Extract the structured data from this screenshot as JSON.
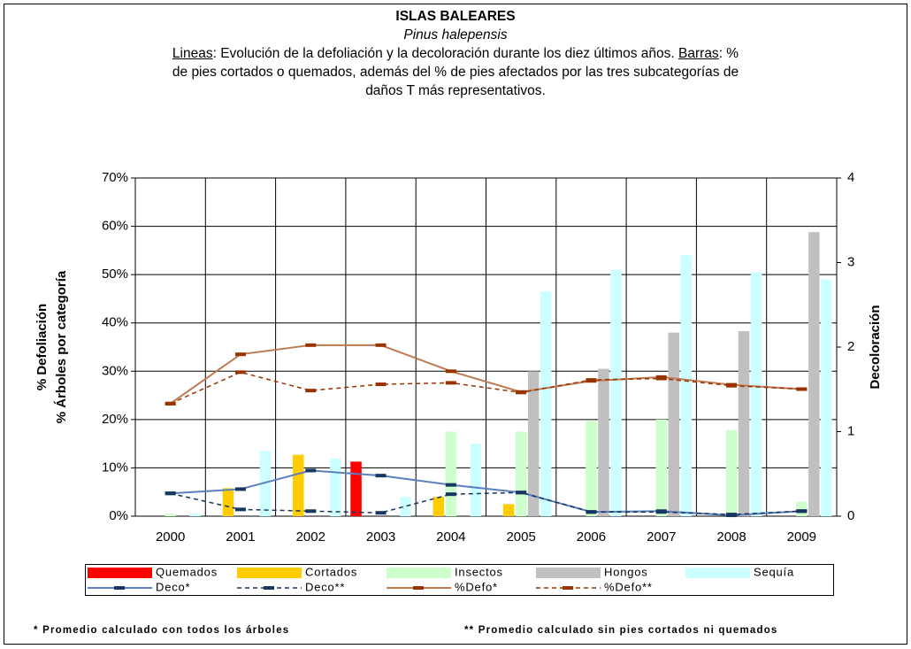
{
  "chart_data": {
    "type": "bar",
    "title": "ISLAS BALEARES",
    "subtitle": "Pinus halepensis",
    "description": [
      {
        "text": "Lineas",
        "underline": true
      },
      {
        "text": ": Evolución de la defoliación y la decoloración durante los diez últimos años. ",
        "underline": false
      },
      {
        "text": "Barras",
        "underline": true
      },
      {
        "text": ": % de pies cortados o quemados, además del % de pies afectados por las tres subcategorías de daños T más representativos.",
        "underline": false
      }
    ],
    "ylabel": [
      "% Defoliación",
      "% Árboles por categoría"
    ],
    "y2label": "Decoloración",
    "categories": [
      "2000",
      "2001",
      "2002",
      "2003",
      "2004",
      "2005",
      "2006",
      "2007",
      "2008",
      "2009"
    ],
    "ylim": [
      0,
      70
    ],
    "yticks": [
      {
        "value": 0,
        "label": "0%"
      },
      {
        "value": 10,
        "label": "10%"
      },
      {
        "value": 20,
        "label": "20%"
      },
      {
        "value": 30,
        "label": "30%"
      },
      {
        "value": 40,
        "label": "40%"
      },
      {
        "value": 50,
        "label": "50%"
      },
      {
        "value": 60,
        "label": "60%"
      },
      {
        "value": 70,
        "label": "70%"
      }
    ],
    "y2lim": [
      0,
      4
    ],
    "y2ticks": [
      0,
      1,
      2,
      3,
      4
    ],
    "grid": true,
    "series": [
      {
        "name": "Quemados",
        "type": "bar",
        "color": "#ff0000",
        "values": [
          0,
          0,
          0,
          11.3,
          0,
          0,
          0,
          0,
          0,
          0
        ]
      },
      {
        "name": "Cortados",
        "type": "bar",
        "color": "#ffcc00",
        "values": [
          0,
          5.8,
          12.7,
          0,
          4,
          2.5,
          0,
          0,
          0,
          0
        ]
      },
      {
        "name": "Insectos",
        "type": "bar",
        "color": "#ccffcc",
        "values": [
          0.5,
          0,
          0,
          0,
          17.5,
          17.5,
          19.7,
          20,
          17.8,
          3
        ]
      },
      {
        "name": "Hongos",
        "type": "bar",
        "color": "#c0c0c0",
        "values": [
          0,
          0,
          0,
          0,
          0,
          30,
          30.5,
          38,
          38.3,
          58.8
        ]
      },
      {
        "name": "Sequía",
        "type": "bar",
        "color": "#ccffff",
        "values": [
          0.5,
          13.5,
          12,
          4,
          15,
          46.5,
          51,
          54,
          50.5,
          49
        ]
      },
      {
        "name": "Deco*",
        "type": "line",
        "axis": "y2",
        "color": "#5b7fbf",
        "marker_color": "#17375e",
        "dashed": false,
        "values": [
          0.27,
          0.32,
          0.54,
          0.48,
          0.37,
          0.28,
          0.05,
          0.06,
          0.01,
          0.06
        ]
      },
      {
        "name": "Deco**",
        "type": "line",
        "axis": "y2",
        "color": "#17375e",
        "marker_color": "#17375e",
        "dashed": true,
        "values": [
          0.27,
          0.08,
          0.06,
          0.04,
          0.26,
          0.28,
          0.05,
          0.05,
          0.02,
          0.06
        ]
      },
      {
        "name": "%Defo*",
        "type": "line",
        "color": "#c07850",
        "marker_color": "#993300",
        "dashed": false,
        "values": [
          23.3,
          33.5,
          35.4,
          35.4,
          30,
          25.7,
          28,
          28.8,
          27.2,
          26.3
        ]
      },
      {
        "name": "%Defo**",
        "type": "line",
        "color": "#993300",
        "marker_color": "#993300",
        "dashed": true,
        "values": [
          23.3,
          29.8,
          26,
          27.3,
          27.6,
          25.6,
          28.2,
          28.5,
          27,
          26.3
        ]
      }
    ],
    "footnotes": [
      "* Promedio calculado con todos los árboles",
      "** Promedio calculado sin pies cortados ni quemados"
    ]
  }
}
